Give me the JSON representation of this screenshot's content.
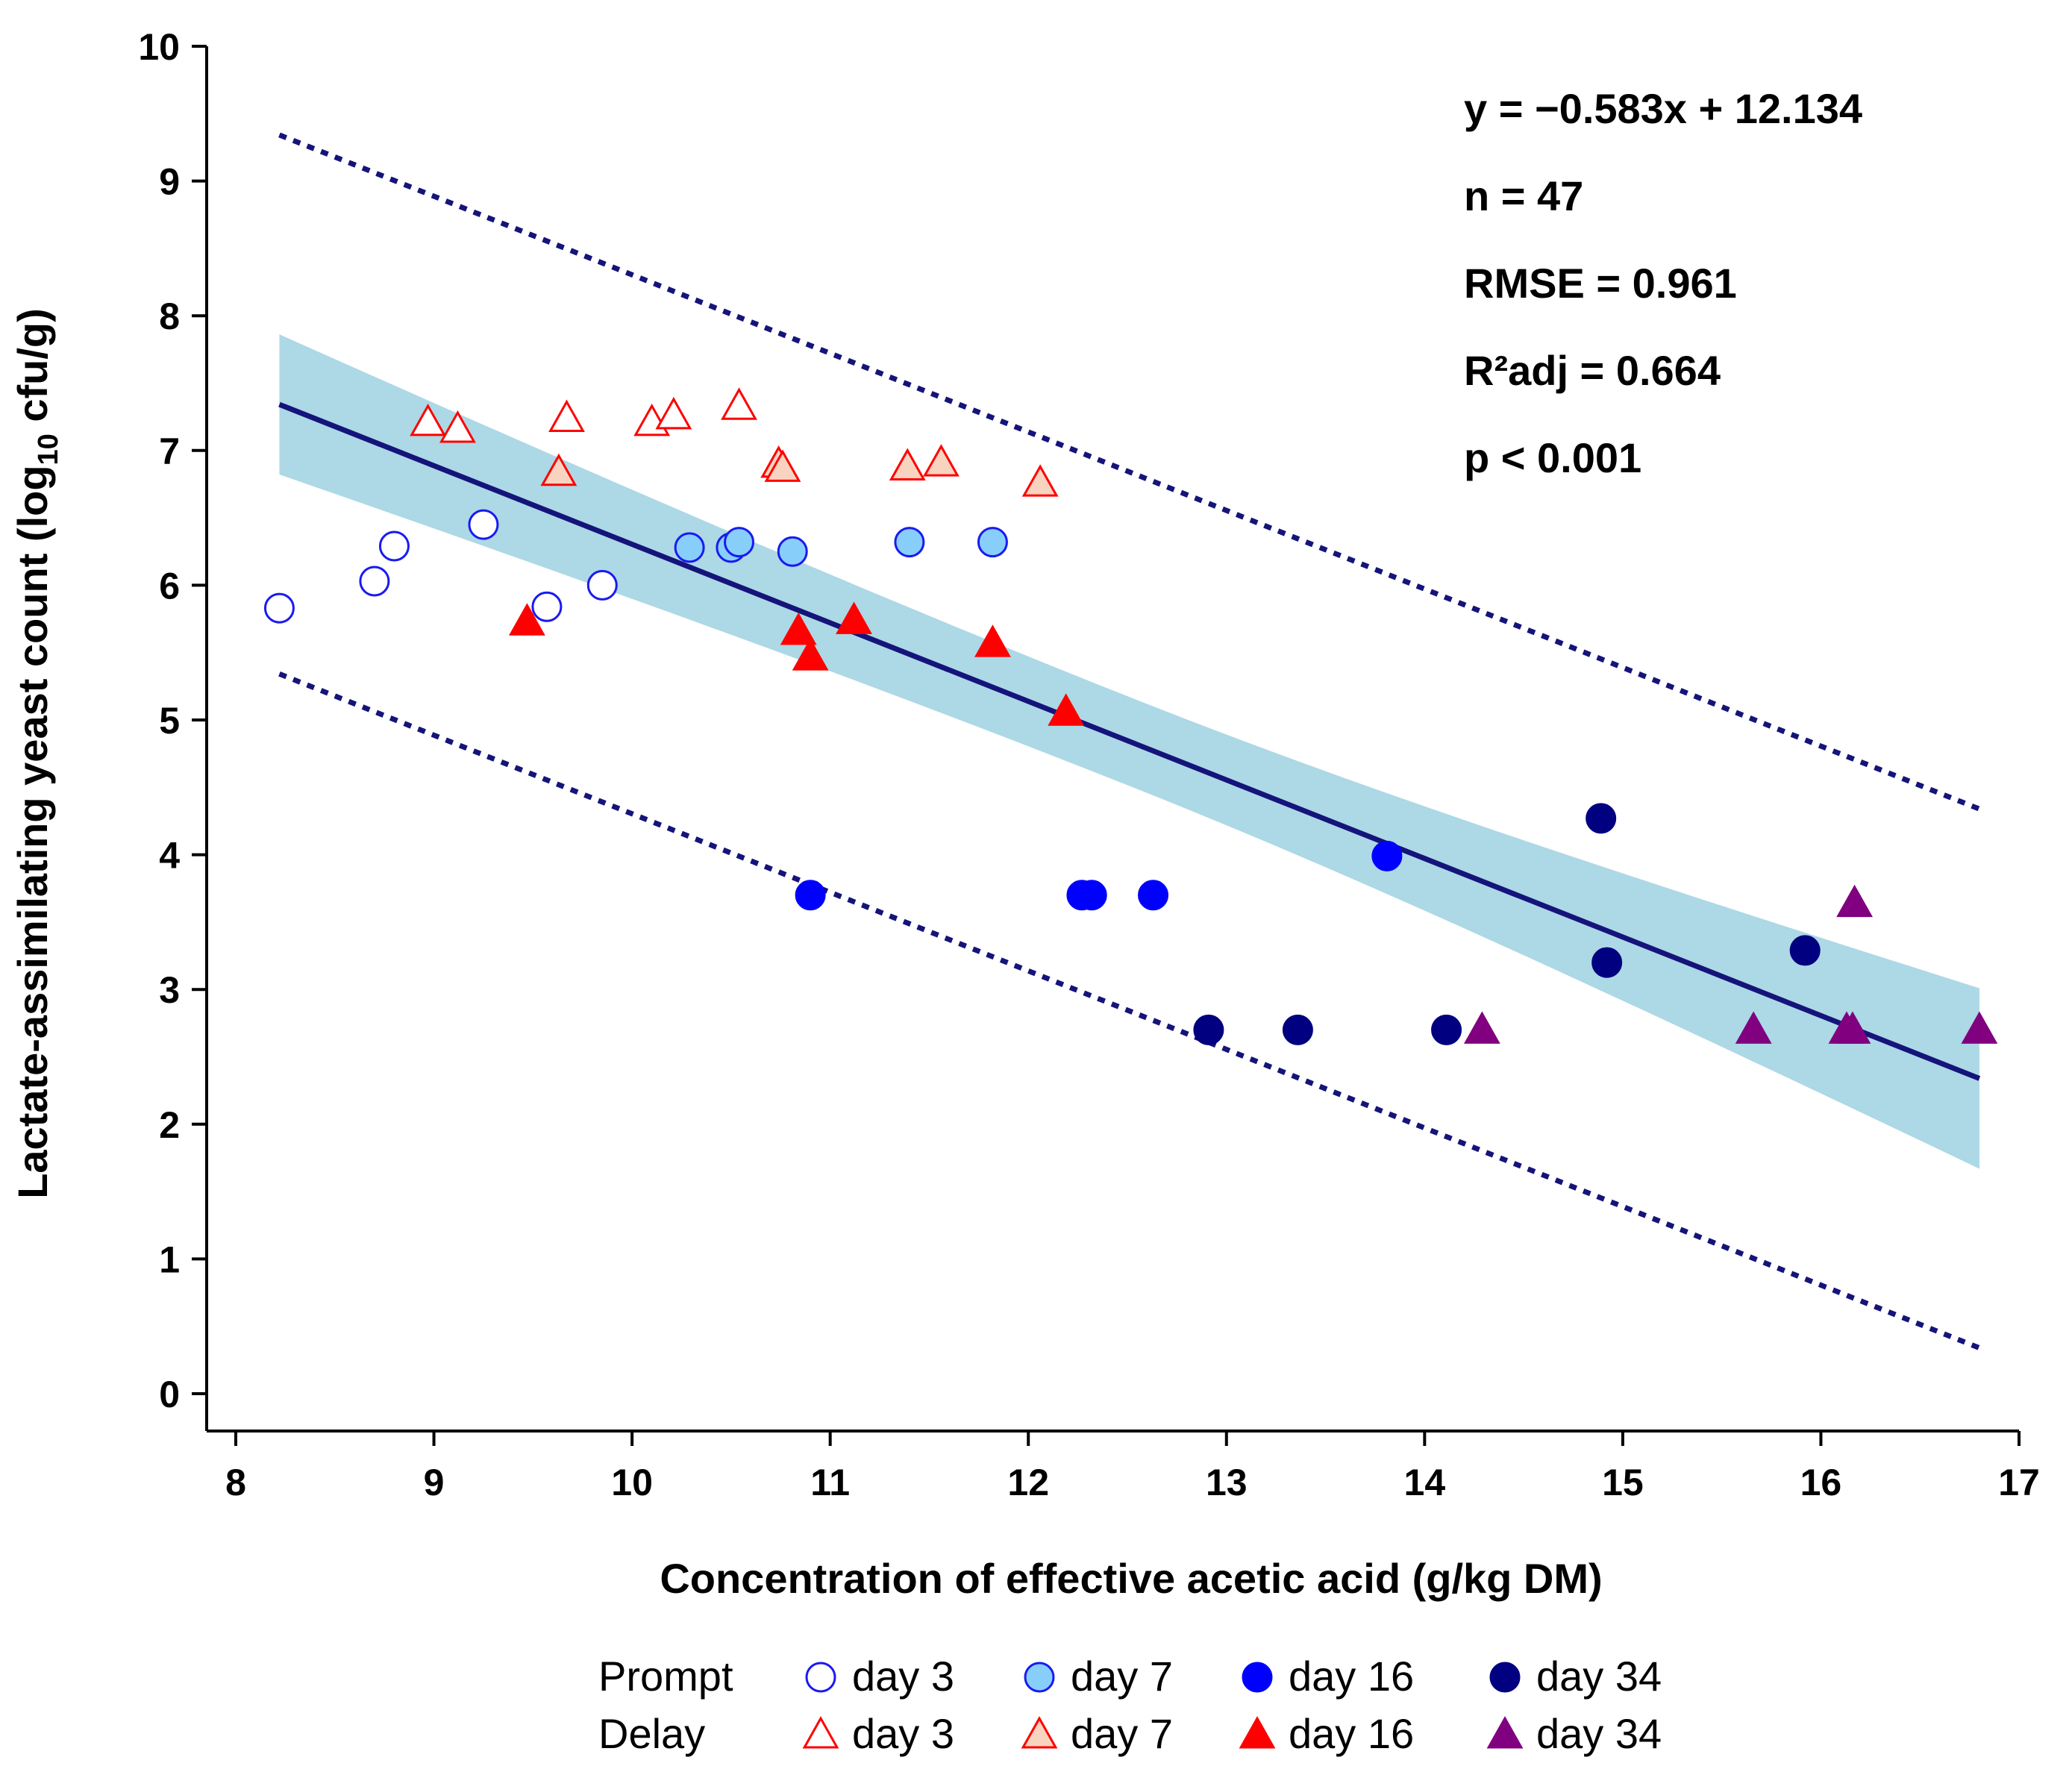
{
  "chart_data": {
    "type": "scatter",
    "xlabel": "Concentration of effective acetic acid (g/kg DM)",
    "ylabel_prefix": "Lactate-assimilating yeast count (log",
    "ylabel_sub": "10",
    "ylabel_suffix": " cfu/g)",
    "xlim": [
      8,
      17
    ],
    "ylim": [
      0,
      10
    ],
    "x_ticks": [
      8,
      9,
      10,
      11,
      12,
      13,
      14,
      15,
      16,
      17
    ],
    "y_ticks": [
      0,
      1,
      2,
      3,
      4,
      5,
      6,
      7,
      8,
      9,
      10
    ],
    "regression": {
      "slope": -0.583,
      "intercept": 12.134,
      "x_range": [
        8.22,
        16.8
      ],
      "confidence_band": {
        "x": [
          8.22,
          16.8
        ],
        "half_width_at_mean": 0.33,
        "half_width_at_ends": [
          0.52,
          0.67
        ],
        "color": "#add8e6"
      },
      "prediction_band_offset": 2.0,
      "line_color": "#14147a"
    },
    "stats": [
      "y = −0.583x + 12.134",
      "n = 47",
      "RMSE = 0.961",
      "R²adj = 0.664",
      "p < 0.001"
    ],
    "series": [
      {
        "name": "Prompt day 3",
        "group": "Prompt",
        "day_label": "day 3",
        "marker": "circle",
        "fill": "#ffffff",
        "stroke": "#1a1af0",
        "points": [
          [
            8.22,
            5.83
          ],
          [
            8.7,
            6.03
          ],
          [
            8.8,
            6.29
          ],
          [
            9.25,
            6.45
          ],
          [
            9.57,
            5.84
          ],
          [
            9.85,
            6.0
          ]
        ]
      },
      {
        "name": "Prompt day 7",
        "group": "Prompt",
        "day_label": "day 7",
        "marker": "circle",
        "fill": "#87cefa",
        "stroke": "#1a1af0",
        "points": [
          [
            10.29,
            6.28
          ],
          [
            10.5,
            6.28
          ],
          [
            10.54,
            6.32
          ],
          [
            10.81,
            6.25
          ],
          [
            11.4,
            6.32
          ],
          [
            11.82,
            6.32
          ]
        ]
      },
      {
        "name": "Prompt day 16",
        "group": "Prompt",
        "day_label": "day 16",
        "marker": "circle",
        "fill": "#0000ff",
        "stroke": "#0000ff",
        "points": [
          [
            10.9,
            3.7
          ],
          [
            12.27,
            3.7
          ],
          [
            12.32,
            3.7
          ],
          [
            12.63,
            3.7
          ],
          [
            13.81,
            3.99
          ]
        ]
      },
      {
        "name": "Prompt day 34",
        "group": "Prompt",
        "day_label": "day 34",
        "marker": "circle",
        "fill": "#000080",
        "stroke": "#000080",
        "points": [
          [
            12.91,
            2.7
          ],
          [
            13.36,
            2.7
          ],
          [
            14.11,
            2.7
          ],
          [
            14.89,
            4.27
          ],
          [
            14.92,
            3.2
          ],
          [
            15.92,
            3.29
          ]
        ]
      },
      {
        "name": "Delay day 3",
        "group": "Delay",
        "day_label": "day 3",
        "marker": "triangle",
        "fill": "#ffffff",
        "stroke": "#ff0000",
        "points": [
          [
            8.97,
            7.21
          ],
          [
            9.12,
            7.16
          ],
          [
            9.67,
            7.24
          ],
          [
            10.1,
            7.21
          ],
          [
            10.21,
            7.26
          ],
          [
            10.54,
            7.33
          ]
        ]
      },
      {
        "name": "Delay day 7",
        "group": "Delay",
        "day_label": "day 7",
        "marker": "triangle",
        "fill": "#f8d4c0",
        "stroke": "#ff0000",
        "points": [
          [
            9.63,
            6.84
          ],
          [
            10.74,
            6.9
          ],
          [
            10.76,
            6.87
          ],
          [
            11.39,
            6.88
          ],
          [
            11.56,
            6.91
          ],
          [
            12.06,
            6.76
          ]
        ]
      },
      {
        "name": "Delay day 16",
        "group": "Delay",
        "day_label": "day 16",
        "marker": "triangle",
        "fill": "#ff0000",
        "stroke": "#ff0000",
        "points": [
          [
            9.47,
            5.73
          ],
          [
            10.84,
            5.66
          ],
          [
            10.9,
            5.47
          ],
          [
            11.12,
            5.74
          ],
          [
            11.82,
            5.57
          ],
          [
            12.19,
            5.06
          ]
        ]
      },
      {
        "name": "Delay day 34",
        "group": "Delay",
        "day_label": "day 34",
        "marker": "triangle",
        "fill": "#800080",
        "stroke": "#800080",
        "points": [
          [
            14.29,
            2.7
          ],
          [
            15.66,
            2.7
          ],
          [
            16.13,
            2.7
          ],
          [
            16.16,
            2.7
          ],
          [
            16.17,
            3.64
          ],
          [
            16.8,
            2.7
          ]
        ]
      }
    ],
    "legend": {
      "placement": "bottom",
      "row_labels": [
        "Prompt",
        "Delay"
      ]
    }
  }
}
